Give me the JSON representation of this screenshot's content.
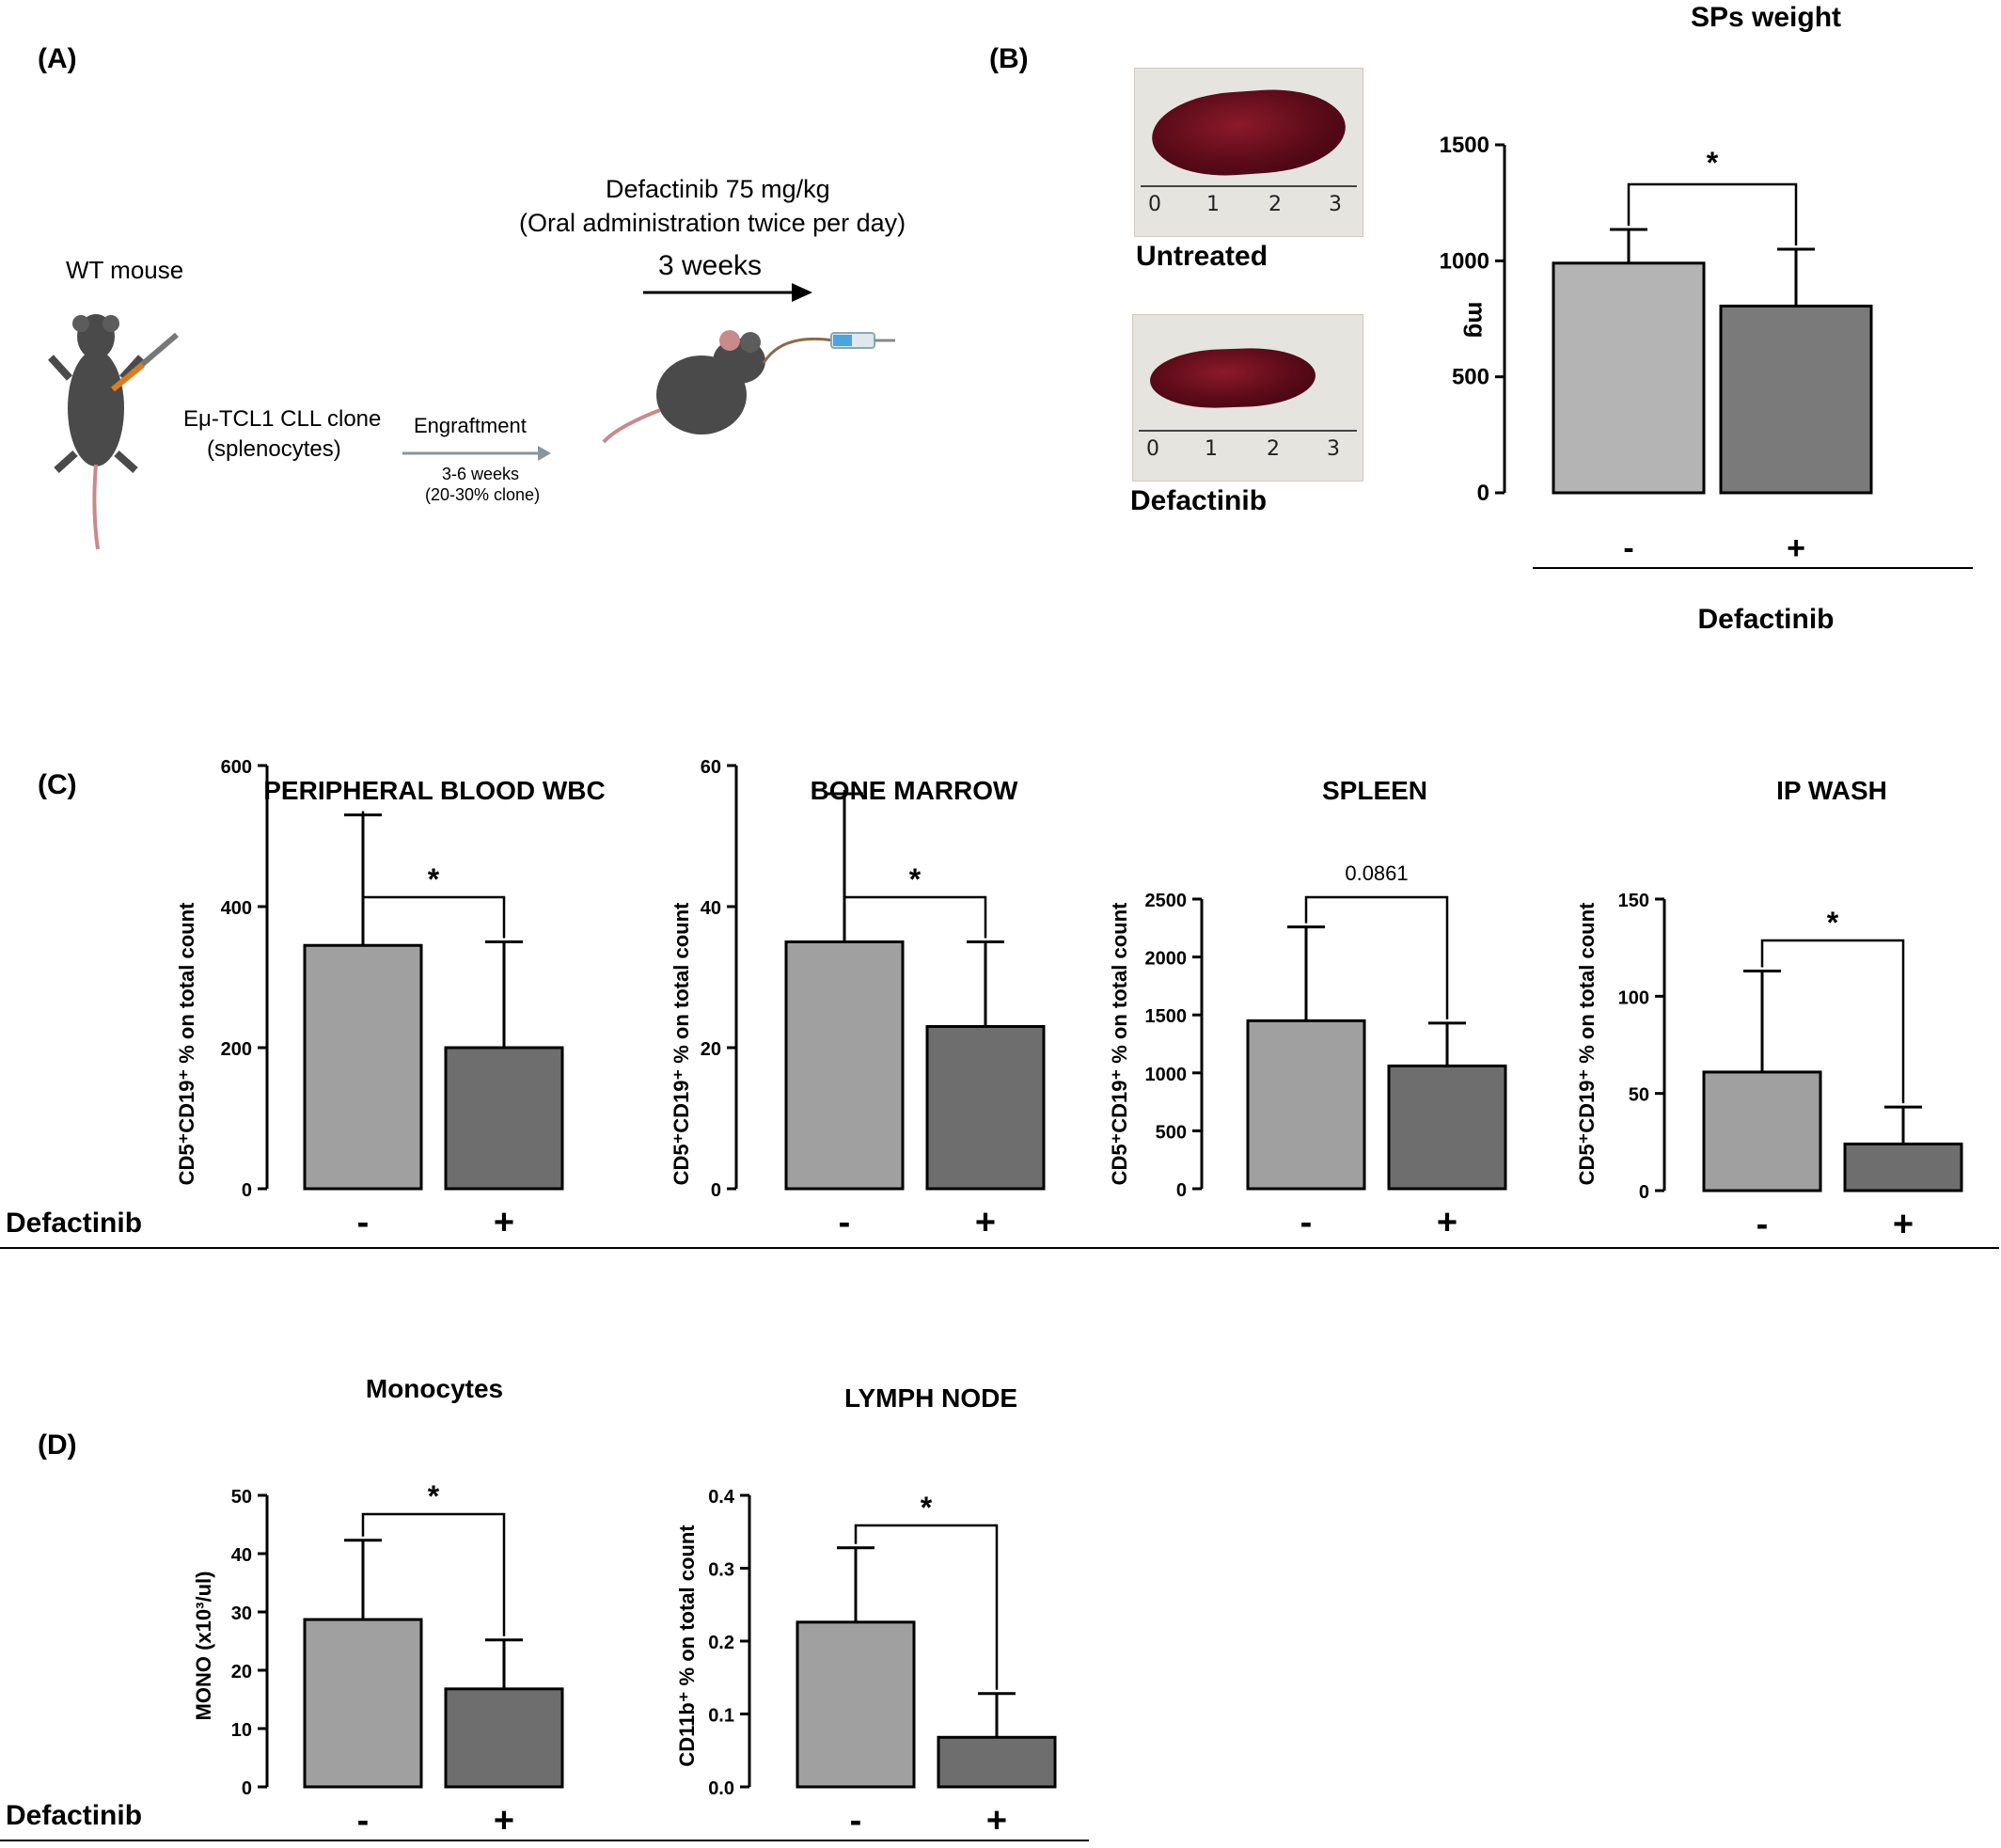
{
  "panel_labels": {
    "a": "(A)",
    "b": "(B)",
    "c": "(C)",
    "d": "(D)"
  },
  "schematic": {
    "wt_mouse": "WT mouse",
    "clone_line1": "Eμ-TCL1 CLL clone",
    "clone_line2": "(splenocytes)",
    "engraftment": "Engraftment",
    "weeks_line1": "3-6 weeks",
    "weeks_line2": "(20-30% clone)",
    "drug_line1": "Defactinib 75 mg/kg",
    "drug_line2": "(Oral administration twice per day)",
    "duration": "3 weeks"
  },
  "photos": {
    "untreated_label": "Untreated",
    "defactinib_label": "Defactinib",
    "ruler_marks": [
      "0",
      "1",
      "2",
      "3"
    ]
  },
  "row_labels": {
    "c_defactinib": "Defactinib",
    "d_defactinib": "Defactinib"
  },
  "colors": {
    "bar_minus": "#a0a0a0",
    "bar_plus": "#6e6e6e",
    "sp_minus": "#b4b4b4",
    "sp_plus": "#7a7a7a"
  },
  "chart_data": [
    {
      "id": "sp",
      "type": "bar",
      "title": "SPs weight",
      "xlabel": "Defactinib",
      "ylabel": "mg",
      "categories": [
        "-",
        "+"
      ],
      "values": [
        990,
        805
      ],
      "errors": [
        145,
        245
      ],
      "ylim": [
        0,
        1500
      ],
      "yticks": [
        "0",
        "500",
        "1000",
        "1500"
      ],
      "significance": "*"
    },
    {
      "id": "pb",
      "type": "bar",
      "title": "PERIPHERAL BLOOD WBC",
      "ylabel": "CD5⁺CD19⁺ % on total count",
      "categories": [
        "-",
        "+"
      ],
      "values": [
        345,
        200
      ],
      "errors": [
        185,
        150
      ],
      "ylim": [
        0,
        600
      ],
      "yticks": [
        "0",
        "200",
        "400",
        "600"
      ],
      "significance": "*"
    },
    {
      "id": "bm",
      "type": "bar",
      "title": "BONE MARROW",
      "ylabel": "CD5⁺CD19⁺ % on total count",
      "categories": [
        "-",
        "+"
      ],
      "values": [
        35,
        23
      ],
      "errors": [
        21,
        12
      ],
      "ylim": [
        0,
        60
      ],
      "yticks": [
        "0",
        "20",
        "40",
        "60"
      ],
      "significance": "*"
    },
    {
      "id": "spleen",
      "type": "bar",
      "title": "SPLEEN",
      "ylabel": "CD5⁺CD19⁺ % on total count",
      "categories": [
        "-",
        "+"
      ],
      "values": [
        1450,
        1060
      ],
      "errors": [
        810,
        370
      ],
      "ylim": [
        0,
        2500
      ],
      "yticks": [
        "0",
        "500",
        "1000",
        "1500",
        "2000",
        "2500"
      ],
      "significance": "0.0861"
    },
    {
      "id": "ip",
      "type": "bar",
      "title": "IP WASH",
      "ylabel": "CD5⁺CD19⁺ % on total count",
      "categories": [
        "-",
        "+"
      ],
      "values": [
        61,
        24
      ],
      "errors": [
        52,
        19
      ],
      "ylim": [
        0,
        150
      ],
      "yticks": [
        "0",
        "50",
        "100",
        "150"
      ],
      "significance": "*"
    },
    {
      "id": "mono",
      "type": "bar",
      "title": "Monocytes",
      "ylabel": "MONO (x10³/ul)",
      "categories": [
        "-",
        "+"
      ],
      "values": [
        28.7,
        16.8
      ],
      "errors": [
        13.6,
        8.4
      ],
      "ylim": [
        0,
        50
      ],
      "yticks": [
        "0",
        "10",
        "20",
        "30",
        "40",
        "50"
      ],
      "significance": "*"
    },
    {
      "id": "ln",
      "type": "bar",
      "title": "LYMPH NODE",
      "ylabel": "CD11b⁺ % on total count",
      "categories": [
        "-",
        "+"
      ],
      "values": [
        0.226,
        0.068
      ],
      "errors": [
        0.102,
        0.06
      ],
      "ylim": [
        0,
        0.4
      ],
      "yticks": [
        "0.0",
        "0.1",
        "0.2",
        "0.3",
        "0.4"
      ],
      "significance": "*"
    }
  ]
}
